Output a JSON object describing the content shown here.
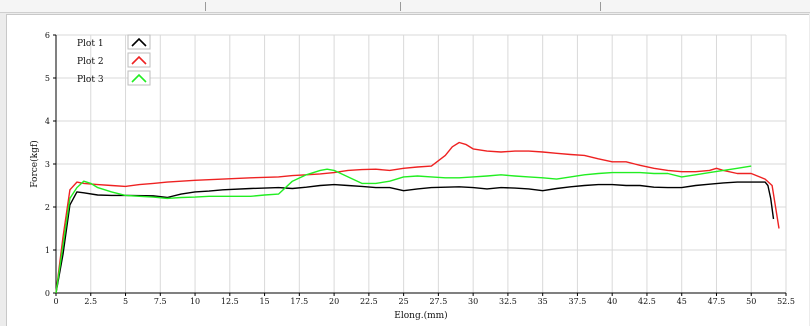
{
  "window": {
    "title": ""
  },
  "chart_data": {
    "type": "line",
    "title": "",
    "xlabel": "Elong.(mm)",
    "ylabel": "Force(kgf)",
    "xlim": [
      0,
      52.5
    ],
    "ylim": [
      0,
      6
    ],
    "xticks": [
      0,
      2.5,
      5,
      7.5,
      10,
      12.5,
      15,
      17.5,
      20,
      22.5,
      25,
      27.5,
      30,
      32.5,
      35,
      37.5,
      40,
      42.5,
      45,
      47.5,
      50,
      52.5
    ],
    "xtick_labels": [
      "0",
      "2.5",
      "5",
      "7.5",
      "10",
      "12.5",
      "15",
      "17.5",
      "20",
      "22.5",
      "25",
      "27.5",
      "30",
      "32.5",
      "35",
      "37.5",
      "40",
      "42.5",
      "45",
      "47.5",
      "50",
      "52.5"
    ],
    "yticks": [
      0,
      1,
      2,
      3,
      4,
      5,
      6
    ],
    "ytick_labels": [
      "0",
      "1",
      "2",
      "3",
      "4",
      "5",
      "6"
    ],
    "grid": true,
    "legend_position": "top-left",
    "series": [
      {
        "name": "Plot 1",
        "color": "#000000",
        "points": [
          [
            0,
            0
          ],
          [
            0.5,
            0.9
          ],
          [
            1,
            2.05
          ],
          [
            1.5,
            2.35
          ],
          [
            2,
            2.33
          ],
          [
            3,
            2.28
          ],
          [
            4,
            2.27
          ],
          [
            5,
            2.27
          ],
          [
            7,
            2.26
          ],
          [
            8,
            2.22
          ],
          [
            9,
            2.3
          ],
          [
            10,
            2.35
          ],
          [
            11,
            2.37
          ],
          [
            12,
            2.4
          ],
          [
            14,
            2.43
          ],
          [
            16,
            2.45
          ],
          [
            17,
            2.43
          ],
          [
            18,
            2.46
          ],
          [
            19,
            2.5
          ],
          [
            20,
            2.52
          ],
          [
            21,
            2.5
          ],
          [
            22,
            2.48
          ],
          [
            23,
            2.45
          ],
          [
            24,
            2.45
          ],
          [
            25,
            2.38
          ],
          [
            26,
            2.42
          ],
          [
            27,
            2.45
          ],
          [
            28,
            2.46
          ],
          [
            29,
            2.47
          ],
          [
            30,
            2.45
          ],
          [
            31,
            2.42
          ],
          [
            32,
            2.45
          ],
          [
            33,
            2.44
          ],
          [
            34,
            2.42
          ],
          [
            35,
            2.38
          ],
          [
            36,
            2.43
          ],
          [
            37,
            2.47
          ],
          [
            38,
            2.5
          ],
          [
            39,
            2.52
          ],
          [
            40,
            2.52
          ],
          [
            41,
            2.5
          ],
          [
            42,
            2.5
          ],
          [
            43,
            2.46
          ],
          [
            44,
            2.45
          ],
          [
            45,
            2.45
          ],
          [
            46,
            2.5
          ],
          [
            47,
            2.53
          ],
          [
            48,
            2.56
          ],
          [
            49,
            2.58
          ],
          [
            50,
            2.58
          ],
          [
            51,
            2.58
          ],
          [
            51.2,
            2.5
          ],
          [
            51.4,
            2.2
          ],
          [
            51.6,
            1.72
          ]
        ]
      },
      {
        "name": "Plot 2",
        "color": "#ee2222",
        "points": [
          [
            0,
            0
          ],
          [
            0.5,
            1.3
          ],
          [
            1,
            2.4
          ],
          [
            1.5,
            2.58
          ],
          [
            2,
            2.55
          ],
          [
            3,
            2.52
          ],
          [
            4,
            2.5
          ],
          [
            5,
            2.48
          ],
          [
            6,
            2.52
          ],
          [
            7,
            2.55
          ],
          [
            8,
            2.58
          ],
          [
            9,
            2.6
          ],
          [
            10,
            2.62
          ],
          [
            12,
            2.65
          ],
          [
            14,
            2.68
          ],
          [
            16,
            2.7
          ],
          [
            17,
            2.73
          ],
          [
            18,
            2.75
          ],
          [
            19,
            2.77
          ],
          [
            20,
            2.8
          ],
          [
            21,
            2.85
          ],
          [
            22,
            2.87
          ],
          [
            23,
            2.88
          ],
          [
            24,
            2.85
          ],
          [
            25,
            2.9
          ],
          [
            26,
            2.93
          ],
          [
            27,
            2.95
          ],
          [
            28,
            3.2
          ],
          [
            28.5,
            3.4
          ],
          [
            29,
            3.5
          ],
          [
            29.5,
            3.45
          ],
          [
            30,
            3.35
          ],
          [
            31,
            3.3
          ],
          [
            32,
            3.28
          ],
          [
            33,
            3.3
          ],
          [
            34,
            3.3
          ],
          [
            35,
            3.28
          ],
          [
            36,
            3.25
          ],
          [
            37,
            3.22
          ],
          [
            38,
            3.2
          ],
          [
            39,
            3.12
          ],
          [
            40,
            3.05
          ],
          [
            41,
            3.05
          ],
          [
            42,
            2.97
          ],
          [
            43,
            2.9
          ],
          [
            44,
            2.85
          ],
          [
            45,
            2.82
          ],
          [
            46,
            2.82
          ],
          [
            47,
            2.85
          ],
          [
            47.5,
            2.9
          ],
          [
            48,
            2.85
          ],
          [
            49,
            2.78
          ],
          [
            50,
            2.78
          ],
          [
            51,
            2.65
          ],
          [
            51.5,
            2.5
          ],
          [
            52,
            1.5
          ]
        ]
      },
      {
        "name": "Plot 3",
        "color": "#22ee22",
        "points": [
          [
            0,
            0
          ],
          [
            0.5,
            1.1
          ],
          [
            1,
            2.2
          ],
          [
            1.5,
            2.45
          ],
          [
            2,
            2.6
          ],
          [
            2.5,
            2.55
          ],
          [
            3,
            2.45
          ],
          [
            4,
            2.35
          ],
          [
            5,
            2.27
          ],
          [
            6,
            2.25
          ],
          [
            7,
            2.23
          ],
          [
            8,
            2.2
          ],
          [
            9,
            2.22
          ],
          [
            10,
            2.23
          ],
          [
            11,
            2.25
          ],
          [
            12,
            2.25
          ],
          [
            13,
            2.25
          ],
          [
            14,
            2.25
          ],
          [
            15,
            2.28
          ],
          [
            16,
            2.3
          ],
          [
            17,
            2.6
          ],
          [
            18,
            2.75
          ],
          [
            19,
            2.85
          ],
          [
            19.5,
            2.88
          ],
          [
            20,
            2.85
          ],
          [
            21,
            2.7
          ],
          [
            22,
            2.55
          ],
          [
            23,
            2.55
          ],
          [
            24,
            2.6
          ],
          [
            25,
            2.7
          ],
          [
            26,
            2.72
          ],
          [
            27,
            2.7
          ],
          [
            28,
            2.68
          ],
          [
            29,
            2.68
          ],
          [
            30,
            2.7
          ],
          [
            31,
            2.72
          ],
          [
            32,
            2.75
          ],
          [
            33,
            2.72
          ],
          [
            34,
            2.7
          ],
          [
            35,
            2.68
          ],
          [
            36,
            2.65
          ],
          [
            37,
            2.7
          ],
          [
            38,
            2.75
          ],
          [
            39,
            2.78
          ],
          [
            40,
            2.8
          ],
          [
            41,
            2.8
          ],
          [
            42,
            2.8
          ],
          [
            43,
            2.78
          ],
          [
            44,
            2.78
          ],
          [
            45,
            2.7
          ],
          [
            46,
            2.75
          ],
          [
            47,
            2.8
          ],
          [
            48,
            2.85
          ],
          [
            49,
            2.9
          ],
          [
            50,
            2.95
          ]
        ]
      }
    ]
  }
}
